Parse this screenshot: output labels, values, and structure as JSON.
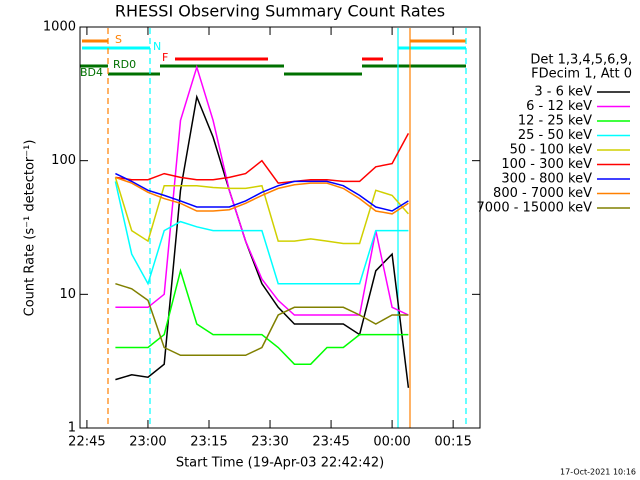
{
  "chart_data": {
    "type": "line",
    "title": "RHESSI Observing Summary Count Rates",
    "x_label": "Start Time (19-Apr-03 22:42:42)",
    "y_label": "Count Rate (s⁻¹ detector⁻¹)",
    "footer": "17-Oct-2021 10:16",
    "legend_title": [
      "Det 1,3,4,5,6,9,",
      "FDecim 1, Att 0"
    ],
    "flags": [
      "S",
      "N",
      "F",
      "RD0",
      "BD4"
    ],
    "log_y": true,
    "xlim": [
      1363.3,
      1461.6
    ],
    "xticks": [
      {
        "value": 1365,
        "label": "22:45"
      },
      {
        "value": 1380,
        "label": "23:00"
      },
      {
        "value": 1395,
        "label": "23:15"
      },
      {
        "value": 1410,
        "label": "23:30"
      },
      {
        "value": 1425,
        "label": "23:45"
      },
      {
        "value": 1440,
        "label": "00:00"
      },
      {
        "value": 1455,
        "label": "00:15"
      }
    ],
    "ylim": [
      1,
      1000
    ],
    "yticks": [
      1,
      10,
      100,
      1000
    ],
    "x": [
      1372,
      1376,
      1380,
      1384,
      1388,
      1392,
      1396,
      1400,
      1404,
      1408,
      1412,
      1416,
      1420,
      1424,
      1428,
      1432,
      1436,
      1440,
      1444
    ],
    "series": [
      {
        "name": "3 - 6 keV",
        "color": "#000000",
        "values": [
          2.3,
          2.5,
          2.4,
          3,
          60,
          300,
          150,
          60,
          25,
          12,
          8,
          6,
          6,
          6,
          6,
          5,
          15,
          20,
          2
        ]
      },
      {
        "name": "6 - 12 keV",
        "color": "#ff00ff",
        "values": [
          8,
          8,
          8,
          10,
          200,
          500,
          200,
          60,
          25,
          13,
          9,
          7,
          7,
          7,
          7,
          7,
          30,
          8,
          7
        ]
      },
      {
        "name": "12 - 25 keV",
        "color": "#00ff00",
        "values": [
          4,
          4,
          4,
          5,
          15,
          6,
          5,
          5,
          5,
          5,
          4,
          3,
          3,
          4,
          4,
          5,
          5,
          5,
          5
        ]
      },
      {
        "name": "25 - 50 keV",
        "color": "#00ffff",
        "values": [
          70,
          20,
          12,
          30,
          35,
          32,
          30,
          30,
          30,
          30,
          12,
          12,
          12,
          12,
          12,
          12,
          30,
          30,
          30
        ]
      },
      {
        "name": "50 - 100 keV",
        "color": "#d0d000",
        "values": [
          75,
          30,
          25,
          65,
          65,
          65,
          63,
          62,
          62,
          65,
          25,
          25,
          26,
          25,
          24,
          24,
          60,
          55,
          40
        ]
      },
      {
        "name": "100 - 300 keV",
        "color": "#ff0000",
        "values": [
          75,
          72,
          72,
          80,
          75,
          72,
          72,
          75,
          80,
          100,
          68,
          70,
          72,
          72,
          70,
          70,
          90,
          95,
          160
        ]
      },
      {
        "name": "300 - 800 keV",
        "color": "#0000ff",
        "values": [
          80,
          70,
          60,
          55,
          50,
          45,
          45,
          45,
          50,
          58,
          65,
          70,
          70,
          70,
          65,
          55,
          45,
          42,
          50
        ]
      },
      {
        "name": "800 - 7000 keV",
        "color": "#ff8000",
        "values": [
          75,
          68,
          58,
          52,
          48,
          42,
          42,
          43,
          48,
          55,
          62,
          66,
          68,
          68,
          62,
          52,
          42,
          40,
          48
        ]
      },
      {
        "name": "7000 - 15000 keV",
        "color": "#808000",
        "values": [
          12,
          11,
          9,
          4,
          3.5,
          3.5,
          3.5,
          3.5,
          3.5,
          4,
          7,
          8,
          8,
          8,
          8,
          7,
          6,
          7,
          7
        ]
      }
    ]
  }
}
